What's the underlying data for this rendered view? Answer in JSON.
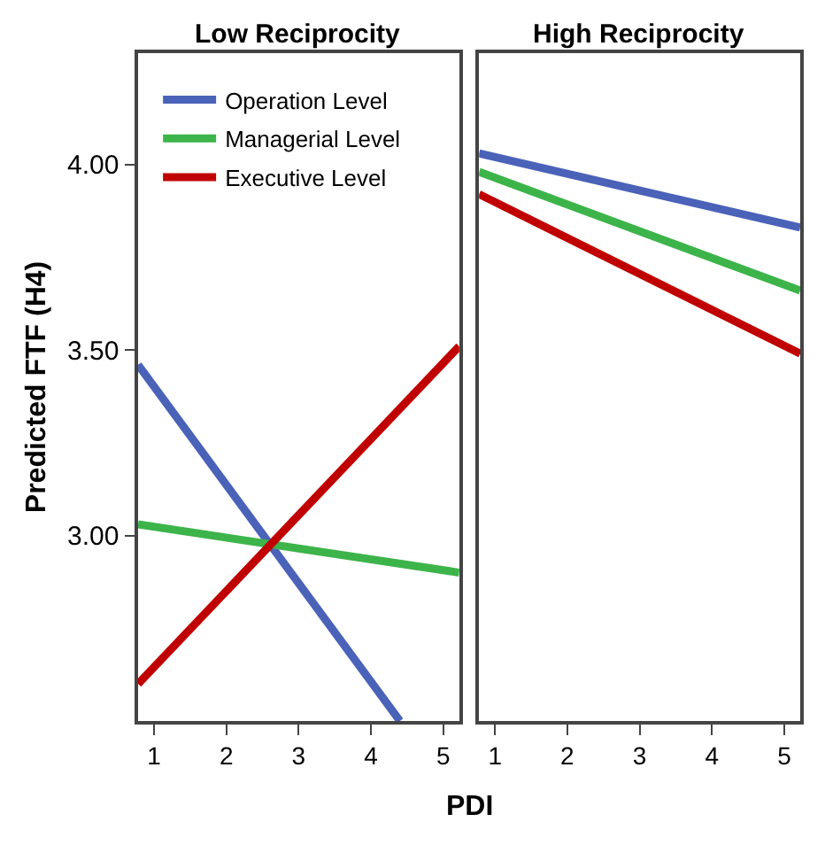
{
  "chart_data": [
    {
      "type": "line",
      "title": "Low Reciprocity",
      "ylabel": "Predicted FTF (H4)",
      "xlabel": "PDI",
      "xlim": [
        0.78,
        5.22
      ],
      "xticks": [
        1,
        2,
        3,
        4,
        5
      ],
      "ylim": [
        2.5,
        4.3
      ],
      "yticks": [
        {
          "value": 3,
          "label": "3.00"
        },
        {
          "value": 3.5,
          "label": "3.50"
        },
        {
          "value": 4,
          "label": "4.00"
        }
      ],
      "grid": false,
      "legend": "top left",
      "marker": "none",
      "series": [
        {
          "name": "Operation Level",
          "color": "#4a62b8",
          "x": [
            0.78,
            4.4
          ],
          "values": [
            3.46,
            2.5
          ]
        },
        {
          "name": "Managerial Level",
          "color": "#3cb44a",
          "x": [
            0.78,
            5.22
          ],
          "values": [
            3.03,
            2.9
          ]
        },
        {
          "name": "Executive Level",
          "color": "#c00000",
          "x": [
            0.78,
            5.22
          ],
          "values": [
            2.6,
            3.51
          ]
        }
      ]
    },
    {
      "type": "line",
      "title": "High Reciprocity",
      "xlim": [
        0.78,
        5.22
      ],
      "xticks": [
        1,
        2,
        3,
        4,
        5
      ],
      "ylim": [
        2.5,
        4.3
      ],
      "tick_labels": "x",
      "grid": false,
      "marker": "none",
      "series": [
        {
          "color": "#4a62b8",
          "x": [
            0.78,
            5.22
          ],
          "values": [
            4.03,
            3.83
          ]
        },
        {
          "color": "#3cb44a",
          "x": [
            0.78,
            5.22
          ],
          "values": [
            3.98,
            3.66
          ]
        },
        {
          "color": "#c00000",
          "x": [
            0.78,
            5.22
          ],
          "values": [
            3.92,
            3.49
          ]
        }
      ]
    }
  ]
}
